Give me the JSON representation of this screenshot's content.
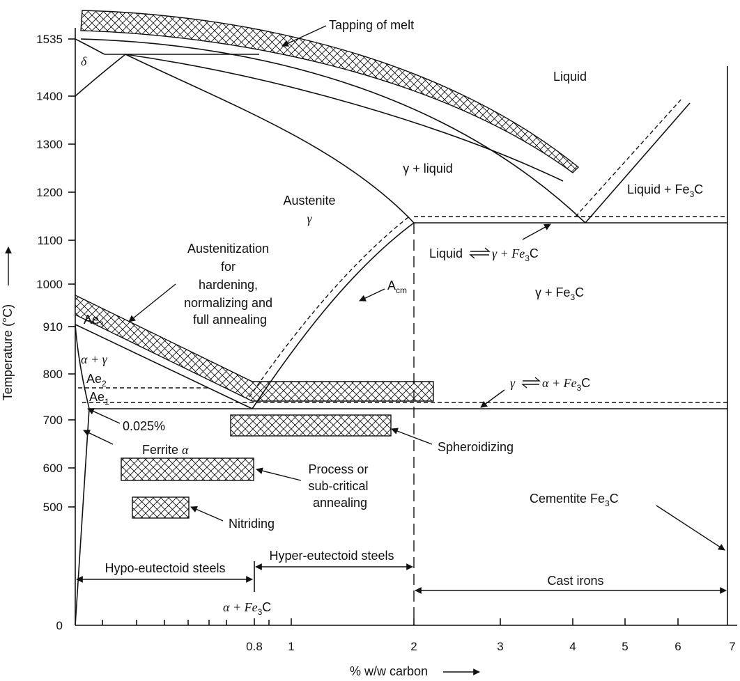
{
  "axes": {
    "y_label": "Temperature (°C)",
    "x_label": "% w/w carbon",
    "y_ticks": [
      "1535",
      "1400",
      "1300",
      "1200",
      "1100",
      "1000",
      "910",
      "800",
      "700",
      "600",
      "500",
      "0"
    ],
    "x_ticks": [
      "0.8",
      "1",
      "2",
      "3",
      "4",
      "5",
      "6",
      "7"
    ]
  },
  "regions": {
    "liquid": "Liquid",
    "gamma_liquid": "γ + liquid",
    "austenite": "Austenite",
    "austenite_symbol": "γ",
    "liquid_fe3c_pre": "Liquid + Fe",
    "liquid_fe3c_sub": "3",
    "liquid_fe3c_post": "C",
    "gamma_fe3c_pre": "γ + Fe",
    "gamma_fe3c_sub": "3",
    "gamma_fe3c_post": "C",
    "delta": "δ",
    "alpha_gamma": "α + γ",
    "ferrite_pre": "Ferrite ",
    "ferrite_sym": "α",
    "cementite_pre": "Cementite Fe",
    "cementite_sub": "3",
    "cementite_post": "C",
    "alpha_fe3c_pre": "α + Fe",
    "alpha_fe3c_sub": "3",
    "alpha_fe3c_post": "C"
  },
  "lines": {
    "ae3_main": "Ae",
    "ae3_sub": "3",
    "ae2_main": "Ae",
    "ae2_sub": "2",
    "ae1_main": "Ae",
    "ae1_sub": "1",
    "acm_main": "A",
    "acm_sub": "cm",
    "solubility": "0.025%"
  },
  "reactions": {
    "eutectic_pre": "Liquid",
    "eutectic_mid": "γ + Fe",
    "eutectic_sub": "3",
    "eutectic_post": "C",
    "eutectoid_pre": "γ",
    "eutectoid_mid": "α + Fe",
    "eutectoid_sub": "3",
    "eutectoid_post": "C"
  },
  "treatments": {
    "tapping": "Tapping of melt",
    "austenitization": [
      "Austenitization",
      "for",
      "hardening,",
      "normalizing and",
      "full annealing"
    ],
    "spheroidizing": "Spheroidizing",
    "process_annealing": [
      "Process or",
      "sub-critical",
      "annealing"
    ],
    "nitriding": "Nitriding"
  },
  "ranges": {
    "hypo": "Hypo-eutectoid steels",
    "hyper": "Hyper-eutectoid steels",
    "cast": "Cast irons"
  }
}
